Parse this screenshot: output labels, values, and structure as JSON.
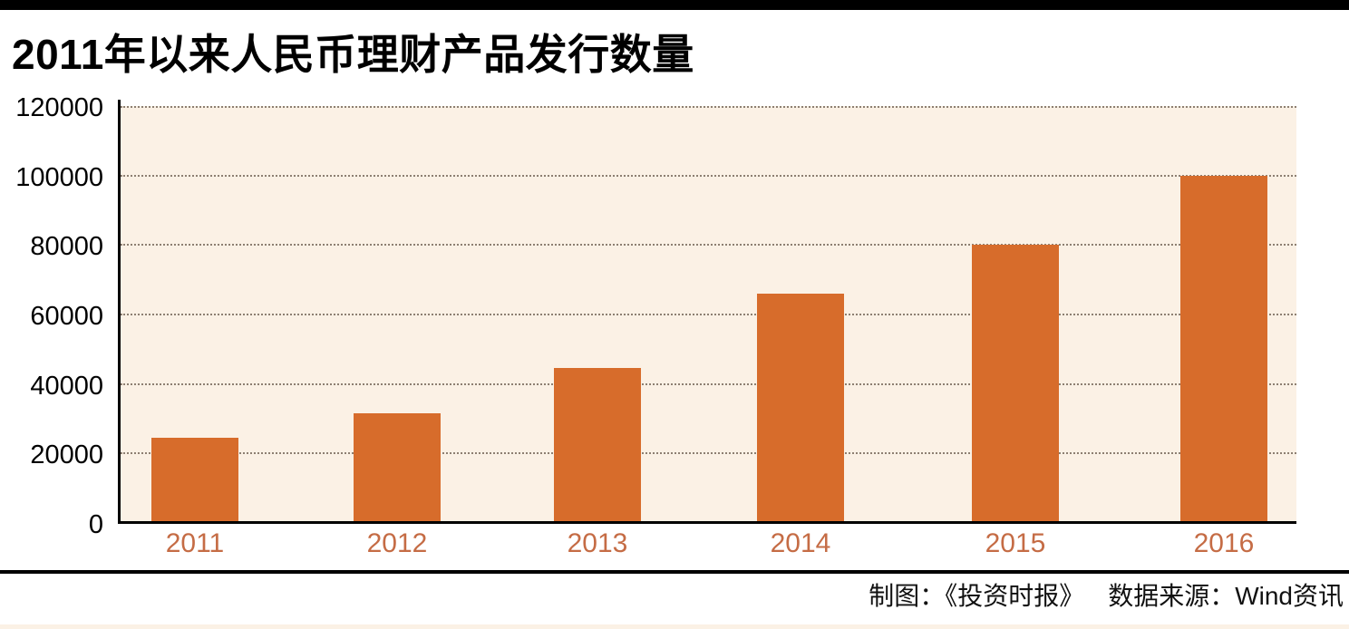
{
  "title": "2011年以来人民币理财产品发行数量",
  "footer": {
    "credit_maker": "制图：《投资时报》",
    "credit_source": "数据来源：Wind资讯"
  },
  "chart_data": {
    "type": "bar",
    "title": "2011年以来人民币理财产品发行数量",
    "categories": [
      "2011",
      "2012",
      "2013",
      "2014",
      "2015",
      "2016"
    ],
    "values": [
      24500,
      31500,
      44500,
      66000,
      80000,
      100000
    ],
    "xlabel": "",
    "ylabel": "",
    "ylim": [
      0,
      120000
    ],
    "ytick_interval": 20000,
    "ytick_values": [
      0,
      20000,
      40000,
      60000,
      80000,
      100000,
      120000
    ],
    "ytick_labels": [
      "0",
      "20000",
      "40000",
      "60000",
      "80000",
      "100000",
      "120000"
    ],
    "grid": "horizontal-dotted",
    "legend": "none",
    "plot_background": "#fbf1e5",
    "colors": {
      "bar": "#d76c2b",
      "year_label": "#c56c45",
      "grid_dots": "#8d7f72",
      "axis": "#000000"
    }
  }
}
